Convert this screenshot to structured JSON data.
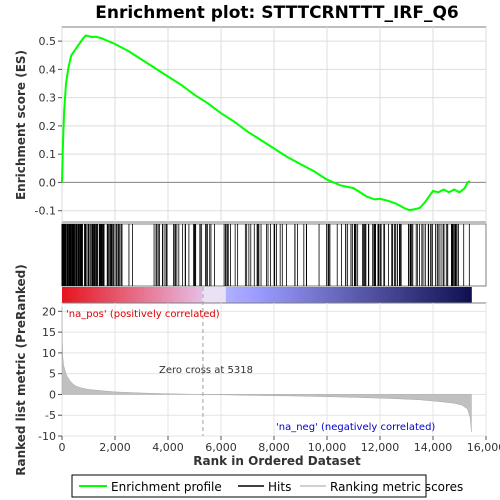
{
  "chart_data": {
    "type": "line",
    "title": "Enrichment plot: STTTCRNTTT_IRF_Q6",
    "xlabel": "Rank in Ordered Dataset",
    "ylabel_top": "Enrichment score (ES)",
    "ylabel_bottom": "Ranked list metric (PreRanked)",
    "xlim": [
      0,
      16000
    ],
    "x_ticks": [
      0,
      2000,
      4000,
      6000,
      8000,
      10000,
      12000,
      14000,
      16000
    ],
    "x_tick_labels": [
      "0",
      "2,000",
      "4,000",
      "6,000",
      "8,000",
      "10,000",
      "12,000",
      "14,000",
      "16,000"
    ],
    "es_ylim": [
      -0.14,
      0.55
    ],
    "es_ticks": [
      -0.1,
      0.0,
      0.1,
      0.2,
      0.3,
      0.4,
      0.5
    ],
    "es_tick_labels": [
      "-0.1",
      "0.0",
      "0.1",
      "0.2",
      "0.3",
      "0.4",
      "0.5"
    ],
    "metric_ylim": [
      -10,
      22
    ],
    "metric_ticks": [
      -10,
      -5,
      0,
      5,
      10,
      15,
      20
    ],
    "metric_tick_labels": [
      "-10",
      "-5",
      "0",
      "5",
      "10",
      "15",
      "20"
    ],
    "total_genes": 15450,
    "zero_cross": 5318,
    "zero_cross_label": "Zero cross at 5318",
    "pos_label": "'na_pos' (positively correlated)",
    "neg_label": "'na_neg' (negatively correlated)",
    "es_curve": {
      "x": [
        0,
        30,
        80,
        150,
        250,
        350,
        500,
        650,
        800,
        900,
        1100,
        1300,
        1500,
        2000,
        2500,
        3000,
        3500,
        4000,
        4500,
        5000,
        5500,
        6000,
        6500,
        7000,
        7500,
        8000,
        8500,
        9000,
        9500,
        10000,
        10500,
        11000,
        11500,
        11800,
        12000,
        12300,
        12600,
        12900,
        13100,
        13300,
        13500,
        13700,
        13850,
        14000,
        14200,
        14400,
        14600,
        14800,
        15000,
        15200,
        15300,
        15400
      ],
      "y": [
        0.0,
        0.12,
        0.25,
        0.35,
        0.41,
        0.45,
        0.47,
        0.49,
        0.51,
        0.52,
        0.515,
        0.515,
        0.51,
        0.49,
        0.465,
        0.435,
        0.405,
        0.375,
        0.345,
        0.31,
        0.28,
        0.245,
        0.215,
        0.18,
        0.15,
        0.12,
        0.09,
        0.065,
        0.04,
        0.01,
        -0.01,
        -0.02,
        -0.05,
        -0.06,
        -0.058,
        -0.065,
        -0.075,
        -0.09,
        -0.098,
        -0.095,
        -0.09,
        -0.07,
        -0.05,
        -0.03,
        -0.035,
        -0.025,
        -0.035,
        -0.025,
        -0.035,
        -0.02,
        0.0,
        0.005
      ]
    },
    "metric_profile": {
      "x": [
        0,
        10,
        30,
        60,
        100,
        150,
        200,
        300,
        400,
        500,
        700,
        1000,
        1500,
        2000,
        3000,
        4000,
        5318,
        7000,
        9000,
        11000,
        12500,
        13500,
        14200,
        14800,
        15100,
        15300,
        15400,
        15450
      ],
      "y": [
        21,
        13,
        9,
        7,
        6,
        5,
        4.3,
        3.3,
        2.6,
        2.1,
        1.6,
        1.2,
        0.9,
        0.6,
        0.35,
        0.15,
        0.0,
        -0.2,
        -0.4,
        -0.7,
        -1.0,
        -1.3,
        -1.7,
        -2.1,
        -2.6,
        -3.5,
        -5.5,
        -9
      ]
    },
    "series": [
      {
        "name": "Enrichment profile",
        "color": "#00ff00"
      },
      {
        "name": "Hits",
        "color": "#000000"
      },
      {
        "name": "Ranking metric scores",
        "color": "#c0c0c0"
      }
    ]
  }
}
